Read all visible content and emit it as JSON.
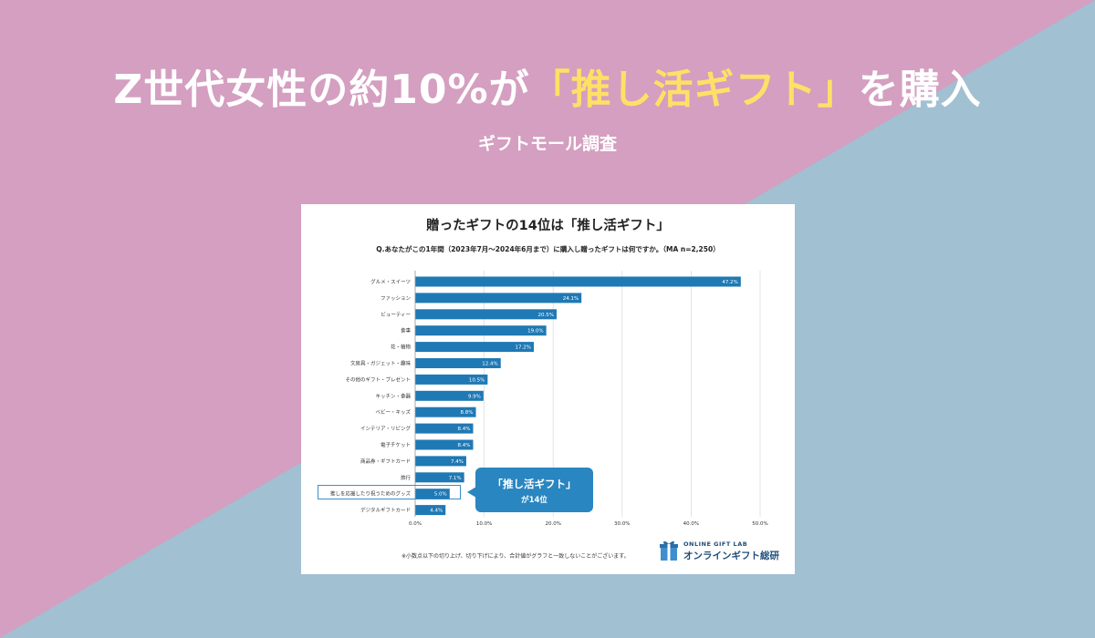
{
  "colors": {
    "pink": "#d49fc0",
    "blue": "#a1c0d2",
    "accent_yellow": "#ffe066",
    "bar": "#1f79b4",
    "callout": "#2a86c0"
  },
  "headline": {
    "part1": "Z世代女性の約10%が",
    "highlight": "「推し活ギフト」",
    "part2": "を購入"
  },
  "subheadline": "ギフトモール調査",
  "chart_data": {
    "type": "bar",
    "orientation": "horizontal",
    "title": "贈ったギフトの14位は「推し活ギフト」",
    "subtitle": "Q.あなたがこの1年間（2023年7月～2024年6月まで）に購入し贈ったギフトは何ですか。（MA n=2,250）",
    "categories": [
      "グルメ・スイーツ",
      "ファッション",
      "ビューティー",
      "食事",
      "花・植物",
      "文房具・ガジェット・趣味",
      "その他のギフト・プレゼント",
      "キッチン・食器",
      "ベビー・キッズ",
      "インテリア・リビング",
      "電子チケット",
      "商品券・ギフトカード",
      "旅行",
      "推しを応援したり祝うためのグッズ",
      "デジタルギフトカード"
    ],
    "values": [
      47.2,
      24.1,
      20.5,
      19.0,
      17.2,
      12.4,
      10.5,
      9.9,
      8.8,
      8.4,
      8.4,
      7.4,
      7.1,
      5.0,
      4.4
    ],
    "value_labels": [
      "47.2%",
      "24.1%",
      "20.5%",
      "19.0%",
      "17.2%",
      "12.4%",
      "10.5%",
      "9.9%",
      "8.8%",
      "8.4%",
      "8.4%",
      "7.4%",
      "7.1%",
      "5.0%",
      "4.4%"
    ],
    "xlim": [
      0,
      50
    ],
    "xticks": [
      "0.0%",
      "10.0%",
      "20.0%",
      "30.0%",
      "40.0%",
      "50.0%"
    ],
    "grid": true,
    "highlighted_category": "推しを応援したり祝うためのグッズ"
  },
  "callout": {
    "line1": "「推し活ギフト」",
    "line2": "が14位"
  },
  "footnote": "※小数点以下の切り上げ、切り下げにより、合計値がグラフと一致しないことがございます。",
  "logo": {
    "en": "ONLINE GIFT LAB",
    "ja": "オンラインギフト総研",
    "icon": "gift-box-icon"
  }
}
